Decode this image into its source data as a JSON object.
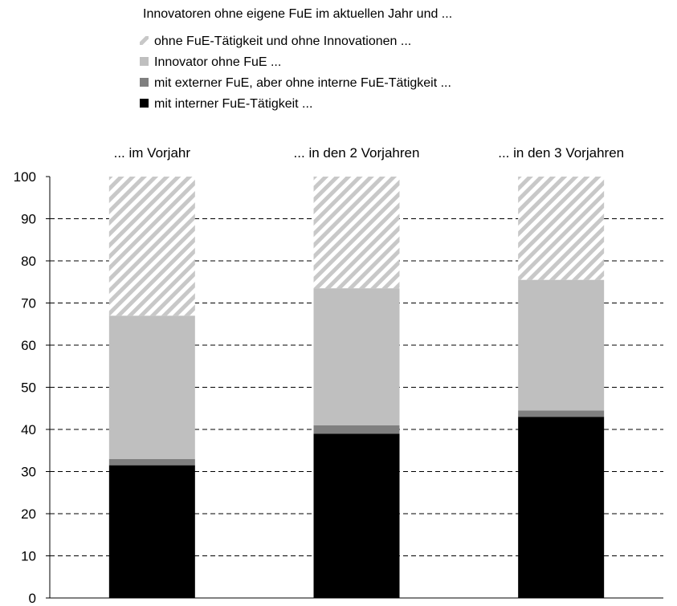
{
  "chart_data": {
    "type": "bar",
    "stacked": true,
    "legend_title": "Innovatoren ohne eigene FuE im aktuellen Jahr und ...",
    "categories": [
      "... im Vorjahr",
      "... in den 2 Vorjahren",
      "... in den 3 Vorjahren"
    ],
    "series": [
      {
        "name": "mit interner FuE-Tätigkeit ...",
        "values": [
          31.5,
          39,
          43
        ],
        "color": "#000000",
        "pattern": "solid"
      },
      {
        "name": "mit externer FuE, aber ohne interne FuE-Tätigkeit ...",
        "values": [
          1.5,
          2,
          1.5
        ],
        "color": "#7f7f7f",
        "pattern": "solid"
      },
      {
        "name": "Innovator ohne FuE ...",
        "values": [
          34,
          32.5,
          31
        ],
        "color": "#bfbfbf",
        "pattern": "solid"
      },
      {
        "name": "ohne FuE-Tätigkeit und ohne Innovationen ...",
        "values": [
          33,
          26.5,
          24.5
        ],
        "color": "#bfbfbf",
        "pattern": "hatched"
      }
    ],
    "legend_order": [
      3,
      2,
      1,
      0
    ],
    "ylim": [
      0,
      100
    ],
    "yticks": [
      0,
      10,
      20,
      30,
      40,
      50,
      60,
      70,
      80,
      90,
      100
    ],
    "grid": "dashed-horizontal",
    "legend_position": "top"
  }
}
